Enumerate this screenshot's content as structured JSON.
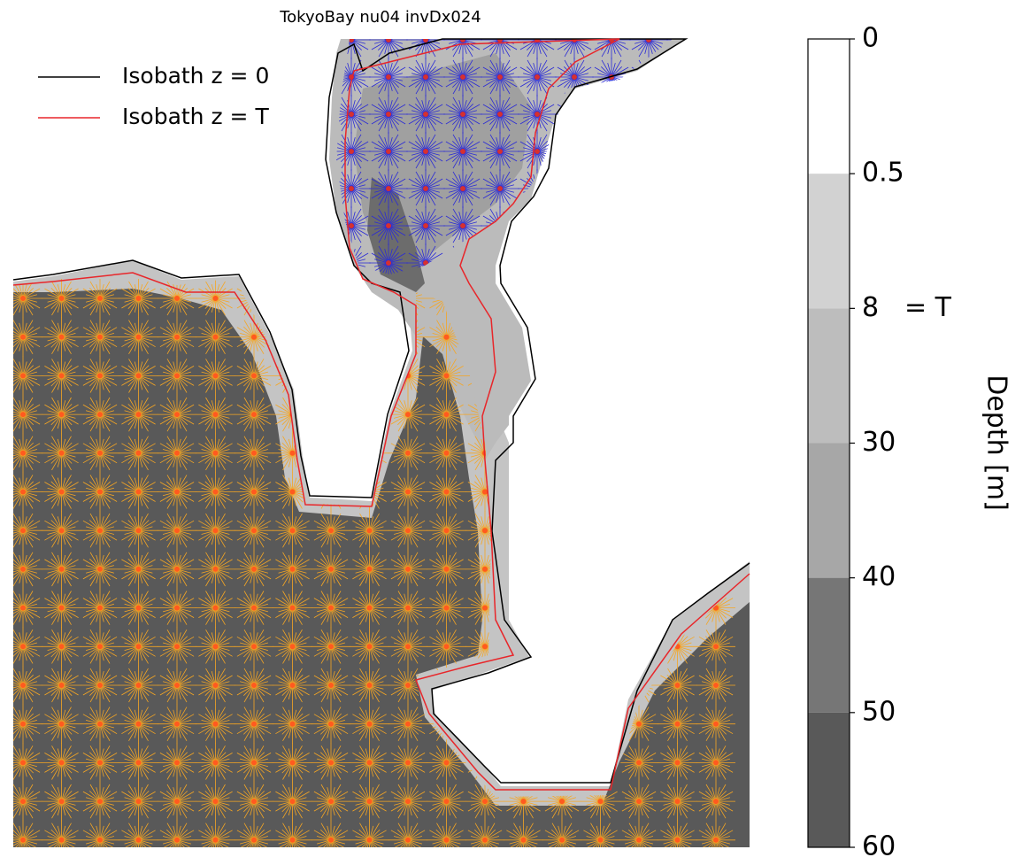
{
  "chart_data": {
    "type": "map",
    "title": "TokyoBay nu04 invDx024",
    "legend": [
      {
        "name": "Isobath z = 0",
        "color": "#000000"
      },
      {
        "name": "Isobath z = T",
        "color": "#e8262a"
      }
    ],
    "colorbar": {
      "label": "Depth [m]",
      "ticks": [
        0,
        0.5,
        8,
        30,
        40,
        50,
        60
      ],
      "colors": [
        "#ffffff",
        "#d2d2d2",
        "#bdbdbd",
        "#a7a7a7",
        "#767676",
        "#595959"
      ],
      "annotation": "= T",
      "annotation_tick": 8
    }
  }
}
